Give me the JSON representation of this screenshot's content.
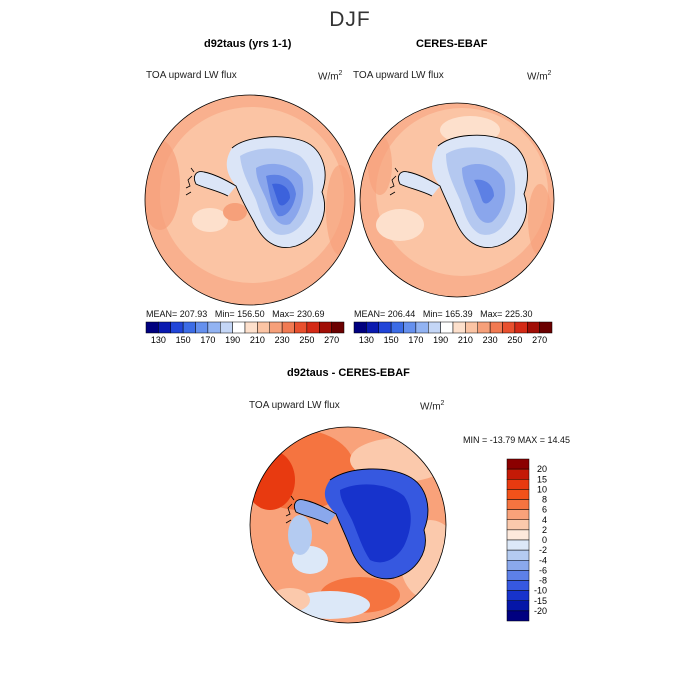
{
  "season": "DJF",
  "panels": [
    {
      "title": "d92taus (yrs 1-1)",
      "variable": "TOA upward LW flux",
      "units": "W/m",
      "units_exp": "2",
      "stats": {
        "mean_label": "MEAN=",
        "mean": "207.93",
        "min_label": "Min=",
        "min": "156.50",
        "max_label": "Max=",
        "max": "230.69"
      }
    },
    {
      "title": "CERES-EBAF",
      "variable": "TOA upward LW flux",
      "units": "W/m",
      "units_exp": "2",
      "stats": {
        "mean_label": "MEAN=",
        "mean": "206.44",
        "min_label": "Min=",
        "min": "165.39",
        "max_label": "Max=",
        "max": "225.30"
      }
    }
  ],
  "diff_panel": {
    "title": "d92taus - CERES-EBAF",
    "variable": "TOA upward LW flux",
    "units": "W/m",
    "units_exp": "2",
    "minmax": "MIN = -13.79 MAX =  14.45"
  },
  "abs_colorbar": {
    "levels": [
      "130",
      "150",
      "170",
      "190",
      "210",
      "230",
      "250",
      "270"
    ],
    "colors": [
      "#00007f",
      "#0a1ab0",
      "#2145d8",
      "#3c6ce6",
      "#6590ee",
      "#92b3f2",
      "#c4d6f6",
      "#ffffff",
      "#fde0cc",
      "#fbc4a4",
      "#f6a07a",
      "#f17a52",
      "#e8502e",
      "#d42a16",
      "#a10e06",
      "#6b0000"
    ]
  },
  "diff_colorbar": {
    "levels": [
      "20",
      "15",
      "10",
      "8",
      "6",
      "4",
      "2",
      "0",
      "-2",
      "-4",
      "-6",
      "-8",
      "-10",
      "-15",
      "-20"
    ],
    "colors": [
      "#8b0000",
      "#c41a06",
      "#e83a10",
      "#f2521a",
      "#f57440",
      "#f9a27a",
      "#fbc9ac",
      "#fde9dc",
      "#dce8f8",
      "#b4cbf1",
      "#8aa8ec",
      "#5d80e8",
      "#3658e0",
      "#1733cc",
      "#0516a8",
      "#000080"
    ]
  }
}
